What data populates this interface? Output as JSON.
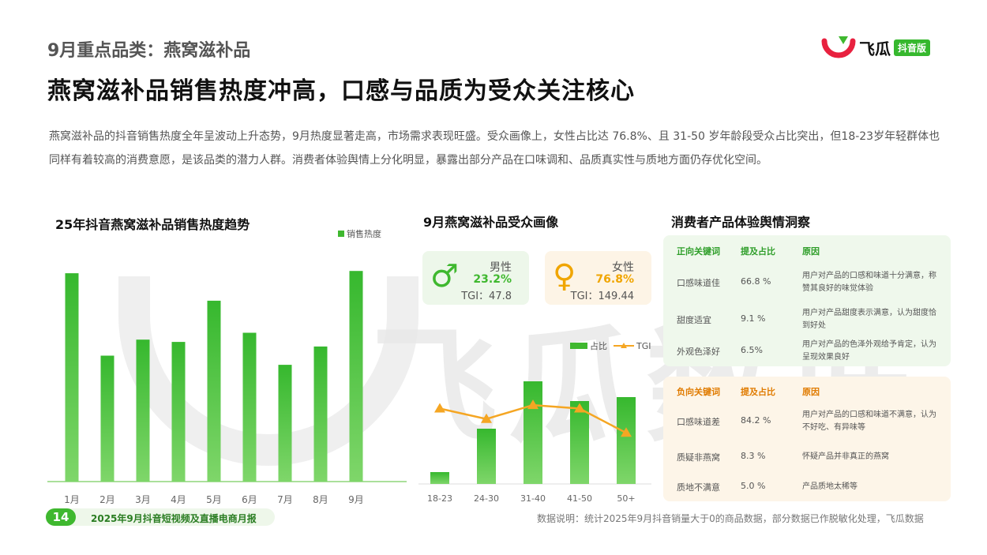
{
  "header": {
    "section_title": "9月重点品类：燕窝滋补品",
    "main_title": "燕窝滋补品销售热度冲高，口感与品质为受众关注核心",
    "logo_text": "飞瓜",
    "logo_tag": "抖音版"
  },
  "intro": "燕窝滋补品的抖音销售热度全年呈波动上升态势，9月热度显著走高，市场需求表现旺盛。受众画像上，女性占比达 76.8%、且 31-50 岁年龄段受众占比突出，但18-23岁年轻群体也同样有着较高的消费意愿，是该品类的潜力人群。消费者体验舆情上分化明显，暴露出部分产品在口味调和、品质真实性与质地方面仍存优化空间。",
  "watermark": "飞瓜数据",
  "trend_chart": {
    "title": "25年抖音燕窝滋补品销售热度趋势",
    "legend": "销售热度"
  },
  "audience": {
    "title": "9月燕窝滋补品受众画像",
    "male": {
      "label": "男性",
      "pct": "23.2%",
      "tgi": "TGI：47.8",
      "symbol": "♂"
    },
    "female": {
      "label": "女性",
      "pct": "76.8%",
      "tgi": "TGI：149.44",
      "symbol": "♀"
    },
    "legend_bar": "占比",
    "legend_line": "TGI"
  },
  "chart_data": [
    {
      "type": "bar",
      "title": "25年抖音燕窝滋补品销售热度趋势",
      "categories": [
        "1月",
        "2月",
        "3月",
        "4月",
        "5月",
        "6月",
        "7月",
        "8月",
        "9月"
      ],
      "series": [
        {
          "name": "销售热度",
          "values": [
            91,
            55,
            62,
            61,
            79,
            65,
            51,
            59,
            92
          ]
        }
      ],
      "ylim": [
        0,
        100
      ],
      "grid": false,
      "legend": "top-right"
    },
    {
      "type": "bar",
      "title": "9月燕窝滋补品受众画像",
      "categories": [
        "18-23",
        "24-30",
        "31-40",
        "41-50",
        "50+"
      ],
      "series": [
        {
          "name": "占比",
          "values": [
            3,
            14,
            26,
            21,
            22
          ]
        },
        {
          "name": "TGI",
          "type": "line",
          "values": [
            95,
            83,
            99,
            95,
            67
          ]
        }
      ],
      "legend": "top-right"
    }
  ],
  "opinion": {
    "title": "消费者产品体验舆情洞察",
    "positive": {
      "headers": [
        "正向关键词",
        "提及占比",
        "原因"
      ],
      "rows": [
        {
          "keyword": "口感味道佳",
          "ratio": "66.8 %",
          "reason": "用户对产品的口感和味道十分满意，称赞其良好的味觉体验"
        },
        {
          "keyword": "甜度适宜",
          "ratio": "9.1 %",
          "reason": "用户对产品甜度表示满意，认为甜度恰到好处"
        },
        {
          "keyword": "外观色泽好",
          "ratio": "6.5%",
          "reason": "用户对产品的色泽外观给予肯定，认为呈现效果良好"
        }
      ]
    },
    "negative": {
      "headers": [
        "负向关键词",
        "提及占比",
        "原因"
      ],
      "rows": [
        {
          "keyword": "口感味道差",
          "ratio": "84.2 %",
          "reason": "用户对产品的口感和味道不满意，认为不好吃、有异味等"
        },
        {
          "keyword": "质疑非燕窝",
          "ratio": "8.3 %",
          "reason": "怀疑产品并非真正的燕窝"
        },
        {
          "keyword": "质地不满意",
          "ratio": "5.0 %",
          "reason": "产品质地太稀等"
        }
      ]
    }
  },
  "footer": {
    "page_number": "14",
    "report_name": "2025年9月抖音短视频及直播电商月报",
    "note": "数据说明：统计2025年9月抖音销量大于0的商品数据，部分数据已作脱敏化处理，飞瓜数据"
  },
  "colors": {
    "accent_green": "#3fb82f",
    "female_orange": "#f0a500",
    "negative_orange": "#e07b00",
    "positive_green": "#2f9e2a",
    "logo_red": "#e8213f"
  }
}
